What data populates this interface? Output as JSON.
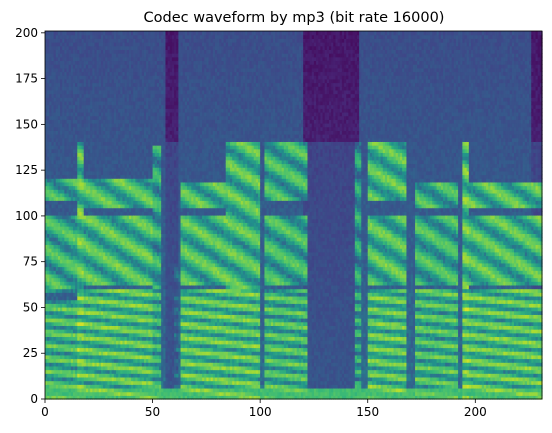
{
  "chart_data": {
    "type": "heatmap",
    "title": "Codec waveform by mp3 (bit rate 16000)",
    "xlabel": "",
    "ylabel": "",
    "xlim": [
      0,
      231
    ],
    "ylim": [
      0,
      201
    ],
    "x_ticks": [
      0,
      50,
      100,
      150,
      200
    ],
    "y_ticks": [
      0,
      25,
      50,
      75,
      100,
      125,
      150,
      175,
      200
    ],
    "grid": false,
    "colormap": "viridis",
    "value_range": [
      0,
      1
    ],
    "segments": [
      {
        "x": [
          0,
          15
        ],
        "energy": 0.8,
        "bands": [
          [
            0,
            55
          ],
          [
            58,
            100
          ],
          [
            108,
            120
          ]
        ]
      },
      {
        "x": [
          15,
          18
        ],
        "energy": 0.9,
        "bands": [
          [
            0,
            140
          ]
        ]
      },
      {
        "x": [
          18,
          50
        ],
        "energy": 0.85,
        "bands": [
          [
            0,
            60
          ],
          [
            62,
            100
          ],
          [
            105,
            120
          ]
        ]
      },
      {
        "x": [
          50,
          54
        ],
        "energy": 0.75,
        "bands": [
          [
            0,
            138
          ]
        ]
      },
      {
        "x": [
          60,
          63
        ],
        "energy": 0.45,
        "bands": [
          [
            0,
            75
          ]
        ]
      },
      {
        "x": [
          63,
          84
        ],
        "energy": 0.85,
        "bands": [
          [
            0,
            60
          ],
          [
            62,
            100
          ],
          [
            104,
            118
          ]
        ]
      },
      {
        "x": [
          84,
          100
        ],
        "energy": 0.85,
        "bands": [
          [
            0,
            140
          ]
        ]
      },
      {
        "x": [
          102,
          122
        ],
        "energy": 0.8,
        "bands": [
          [
            0,
            60
          ],
          [
            62,
            100
          ],
          [
            108,
            140
          ]
        ]
      },
      {
        "x": [
          144,
          147
        ],
        "energy": 0.7,
        "bands": [
          [
            0,
            140
          ]
        ]
      },
      {
        "x": [
          150,
          168
        ],
        "energy": 0.85,
        "bands": [
          [
            0,
            60
          ],
          [
            62,
            100
          ],
          [
            108,
            140
          ]
        ]
      },
      {
        "x": [
          172,
          192
        ],
        "energy": 0.8,
        "bands": [
          [
            0,
            60
          ],
          [
            62,
            100
          ],
          [
            104,
            118
          ]
        ]
      },
      {
        "x": [
          194,
          197
        ],
        "energy": 0.9,
        "bands": [
          [
            0,
            140
          ]
        ]
      },
      {
        "x": [
          197,
          231
        ],
        "energy": 0.85,
        "bands": [
          [
            0,
            60
          ],
          [
            62,
            100
          ],
          [
            104,
            118
          ]
        ]
      }
    ],
    "silence_regions": [
      [
        56,
        62
      ],
      [
        120,
        146
      ],
      [
        226,
        231
      ]
    ]
  }
}
